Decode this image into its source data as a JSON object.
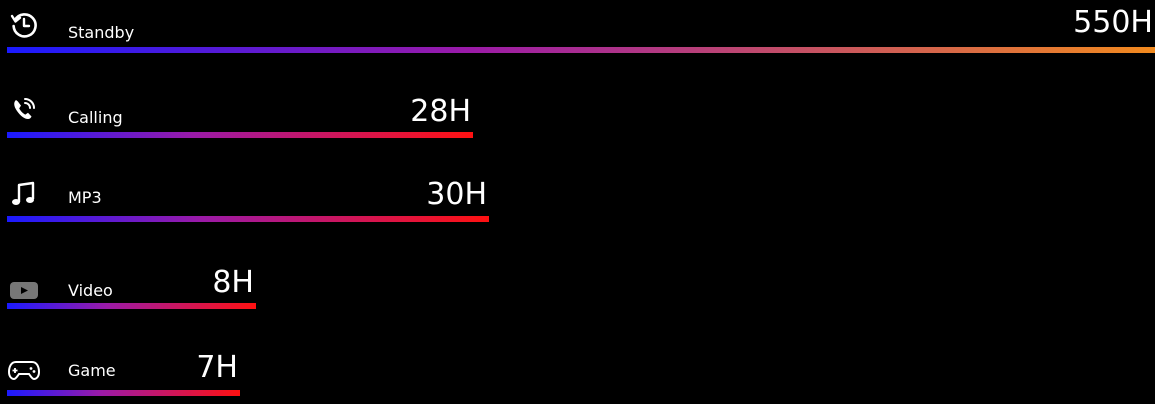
{
  "chart_data": {
    "type": "bar",
    "orientation": "horizontal",
    "categories": [
      "Standby",
      "Calling",
      "MP3",
      "Video",
      "Game"
    ],
    "values": [
      550,
      28,
      30,
      8,
      7
    ],
    "value_labels": [
      "550H",
      "28H",
      "30H",
      "8H",
      "7H"
    ],
    "icons": [
      "standby-icon",
      "calling-icon",
      "music-note-icon",
      "video-icon",
      "gamepad-icon"
    ],
    "unit": "H",
    "colors": {
      "gradient_start": "#1a1aff",
      "gradient_mid": "#9a1aa8",
      "gradient_end_short": "#ff1111",
      "gradient_end_long": "#f28a1e",
      "background": "#000000",
      "text": "#ffffff"
    }
  }
}
